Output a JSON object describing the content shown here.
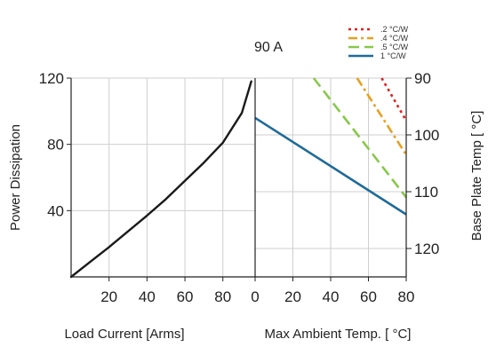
{
  "chart_data": {
    "type": "line",
    "title": "90 A",
    "grid": true,
    "legend_placement": "top-right",
    "panels": [
      {
        "id": "left",
        "xlabel": "Load Current [Arms]",
        "ylabel": "Power Dissipation",
        "xlim": [
          0,
          97
        ],
        "ylim": [
          0,
          120
        ],
        "xticks": [
          20,
          40,
          60,
          80
        ],
        "yticks": [
          40,
          80,
          120
        ],
        "series": [
          {
            "color": "#1a1a1a",
            "style": "solid",
            "x": [
              0,
              10,
              20,
              30,
              40,
              50,
              60,
              70,
              80,
              90,
              95
            ],
            "y": [
              0,
              9,
              18,
              27.5,
              37,
              47,
              58,
              69,
              81,
              99,
              118
            ]
          }
        ]
      },
      {
        "id": "right",
        "xlabel": "Max Ambient Temp. [ °C]",
        "ylabel": "Base Plate Temp [ °C]",
        "xlim": [
          0,
          80
        ],
        "ylim": [
          125,
          90
        ],
        "xticks": [
          0,
          20,
          40,
          60,
          80
        ],
        "yticks": [
          90,
          100,
          110,
          120
        ],
        "series": [
          {
            "name": ".2 °C/W",
            "color": "#e02020",
            "style": "dotted",
            "x": [
              67,
              80
            ],
            "y": [
              90,
              97.5
            ]
          },
          {
            "name": ".4 °C/W",
            "color": "#e8a020",
            "style": "dashdot",
            "x": [
              54,
              80
            ],
            "y": [
              90,
              103.5
            ]
          },
          {
            "name": ".5 °C/W",
            "color": "#88c84a",
            "style": "dashed",
            "x": [
              31,
              80
            ],
            "y": [
              90,
              111
            ]
          },
          {
            "name": "1 °C/W",
            "color": "#1f6b99",
            "style": "solid",
            "x": [
              0,
              80
            ],
            "y": [
              97,
              114
            ]
          }
        ]
      }
    ]
  }
}
